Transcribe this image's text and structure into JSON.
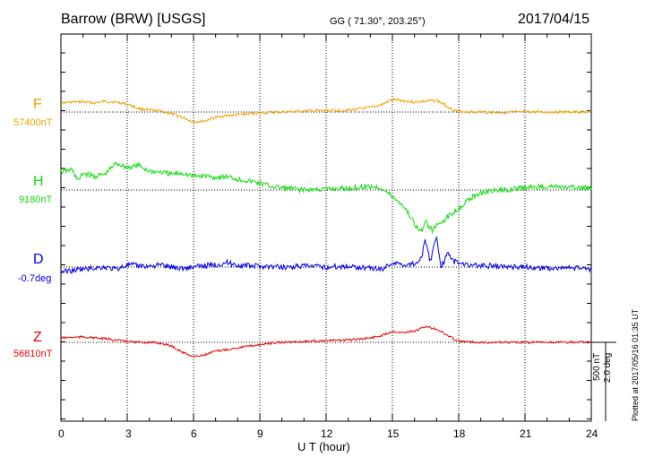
{
  "header": {
    "station": "Barrow (BRW)  [USGS]",
    "coords": "GG ( 71.30°, 203.25°)",
    "date": "2017/04/15"
  },
  "footer": {
    "plotted": "Plotted at 2017/05/16 01:35 UT"
  },
  "scale": {
    "nt": "500 nT",
    "deg": "2.0 deg"
  },
  "chart_data": {
    "type": "line",
    "xlabel": "U T (hour)",
    "xlim": [
      0,
      24
    ],
    "xticks": [
      "0",
      "3",
      "6",
      "9",
      "12",
      "15",
      "18",
      "21",
      "24"
    ],
    "grid": true,
    "series": [
      {
        "name": "F",
        "baseline": "57400nT",
        "color": "#f0a000",
        "x": [
          0,
          0.5,
          1,
          1.5,
          2,
          2.5,
          3,
          3.5,
          4,
          4.5,
          5,
          5.5,
          6,
          6.5,
          7,
          7.5,
          8,
          9,
          10,
          11,
          12,
          13,
          14,
          14.5,
          15,
          15.5,
          16,
          16.5,
          17,
          17.3,
          17.7,
          18,
          19,
          20,
          21,
          22,
          23,
          24
        ],
        "y": [
          20,
          22,
          23,
          20,
          24,
          22,
          18,
          8,
          4,
          2,
          -4,
          -12,
          -22,
          -20,
          -12,
          -8,
          -6,
          -2,
          0,
          2,
          3,
          4,
          10,
          16,
          28,
          25,
          22,
          24,
          26,
          18,
          6,
          1,
          0,
          -1,
          0,
          0,
          0,
          0
        ]
      },
      {
        "name": "H",
        "baseline": "9180nT",
        "color": "#11dd11",
        "x": [
          0,
          0.5,
          0.8,
          1,
          1.5,
          2,
          2.5,
          3,
          3.5,
          4,
          4.5,
          5,
          5.5,
          6,
          6.5,
          7,
          7.5,
          8,
          8.5,
          9,
          9.5,
          10,
          11,
          12,
          13,
          14,
          14.5,
          15,
          15.5,
          16,
          16.3,
          16.5,
          16.8,
          17,
          17.5,
          18,
          18.5,
          19,
          20,
          21,
          22,
          23,
          24
        ],
        "y": [
          40,
          45,
          20,
          38,
          30,
          35,
          60,
          50,
          55,
          42,
          40,
          35,
          38,
          30,
          32,
          28,
          30,
          24,
          20,
          15,
          8,
          5,
          0,
          2,
          4,
          8,
          5,
          -15,
          -35,
          -75,
          -95,
          -70,
          -90,
          -80,
          -60,
          -40,
          -20,
          -5,
          0,
          5,
          8,
          5,
          4
        ]
      },
      {
        "name": "D",
        "baseline": "-0.7deg",
        "color": "#0000ee",
        "x": [
          0,
          0.5,
          1,
          1.5,
          2,
          2.5,
          3,
          3.5,
          4,
          4.5,
          5,
          5.5,
          6,
          6.5,
          7,
          7.5,
          8,
          9,
          10,
          11,
          12,
          13,
          14,
          14.5,
          15,
          15.5,
          16,
          16.3,
          16.5,
          16.7,
          17,
          17.2,
          17.5,
          17.8,
          18,
          18.5,
          19,
          20,
          21,
          22,
          23,
          24
        ],
        "y": [
          -10,
          -8,
          -5,
          -2,
          0,
          -5,
          5,
          3,
          2,
          5,
          0,
          -3,
          0,
          3,
          5,
          10,
          4,
          2,
          0,
          2,
          0,
          2,
          -2,
          -5,
          10,
          5,
          8,
          20,
          60,
          10,
          70,
          0,
          30,
          12,
          10,
          5,
          3,
          1,
          0,
          -3,
          -2,
          -5
        ]
      },
      {
        "name": "Z",
        "baseline": "56810nT",
        "color": "#ee0000",
        "x": [
          0,
          1,
          2,
          3,
          3.5,
          4,
          4.5,
          5,
          5.5,
          6,
          6.5,
          7,
          8,
          9,
          10,
          11,
          12,
          13,
          14,
          14.5,
          15,
          15.5,
          16,
          16.5,
          17,
          17.5,
          18,
          19,
          20,
          21,
          22,
          23,
          24
        ],
        "y": [
          10,
          12,
          8,
          2,
          0,
          0,
          -2,
          -8,
          -22,
          -32,
          -28,
          -20,
          -12,
          -5,
          0,
          2,
          4,
          5,
          10,
          15,
          25,
          22,
          25,
          35,
          30,
          15,
          2,
          0,
          0,
          0,
          0,
          0,
          0
        ]
      }
    ]
  }
}
